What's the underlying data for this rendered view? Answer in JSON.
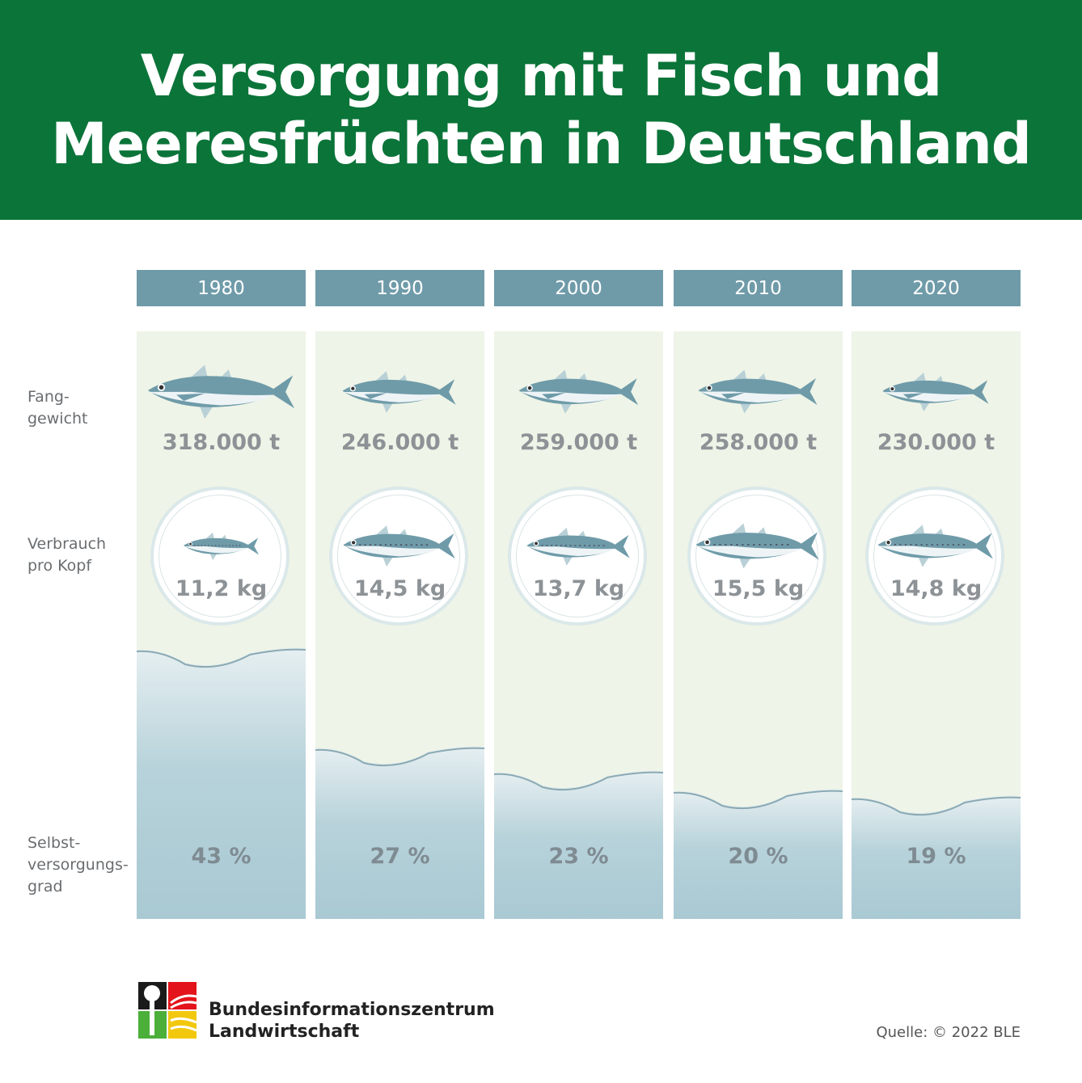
{
  "title_line1": "Versorgung mit Fisch und",
  "title_line2": "Meeresfrüchten in Deutschland",
  "row_labels": {
    "fang": "Fang-\ngewicht",
    "verbrauch": "Verbrauch\npro Kopf",
    "selbst": "Selbst-\nversorgungs-\ngrad"
  },
  "columns": [
    {
      "year": "1980",
      "fang": "318.000 t",
      "kg": "11,2 kg",
      "pct": "43 %"
    },
    {
      "year": "1990",
      "fang": "246.000 t",
      "kg": "14,5 kg",
      "pct": "27 %"
    },
    {
      "year": "2000",
      "fang": "259.000 t",
      "kg": "13,7 kg",
      "pct": "23 %"
    },
    {
      "year": "2010",
      "fang": "258.000 t",
      "kg": "15,5 kg",
      "pct": "20 %"
    },
    {
      "year": "2020",
      "fang": "230.000 t",
      "kg": "14,8 kg",
      "pct": "19 %"
    }
  ],
  "org_name": "Bundesinformationszentrum\nLandwirtschaft",
  "source": "Quelle: © 2022 BLE",
  "colors": {
    "header": "#0b7439",
    "year_bar": "#6f9ba9",
    "column_bg": "#eef4e7",
    "water": "#a9c9d3"
  },
  "chart_data": {
    "type": "table",
    "title": "Versorgung mit Fisch und Meeresfrüchten in Deutschland",
    "categories": [
      "1980",
      "1990",
      "2000",
      "2010",
      "2020"
    ],
    "series": [
      {
        "name": "Fanggewicht",
        "unit": "t",
        "values": [
          318000,
          246000,
          259000,
          258000,
          230000
        ]
      },
      {
        "name": "Verbrauch pro Kopf",
        "unit": "kg",
        "values": [
          11.2,
          14.5,
          13.7,
          15.5,
          14.8
        ]
      },
      {
        "name": "Selbstversorgungsgrad",
        "unit": "%",
        "values": [
          43,
          27,
          23,
          20,
          19
        ]
      }
    ]
  }
}
